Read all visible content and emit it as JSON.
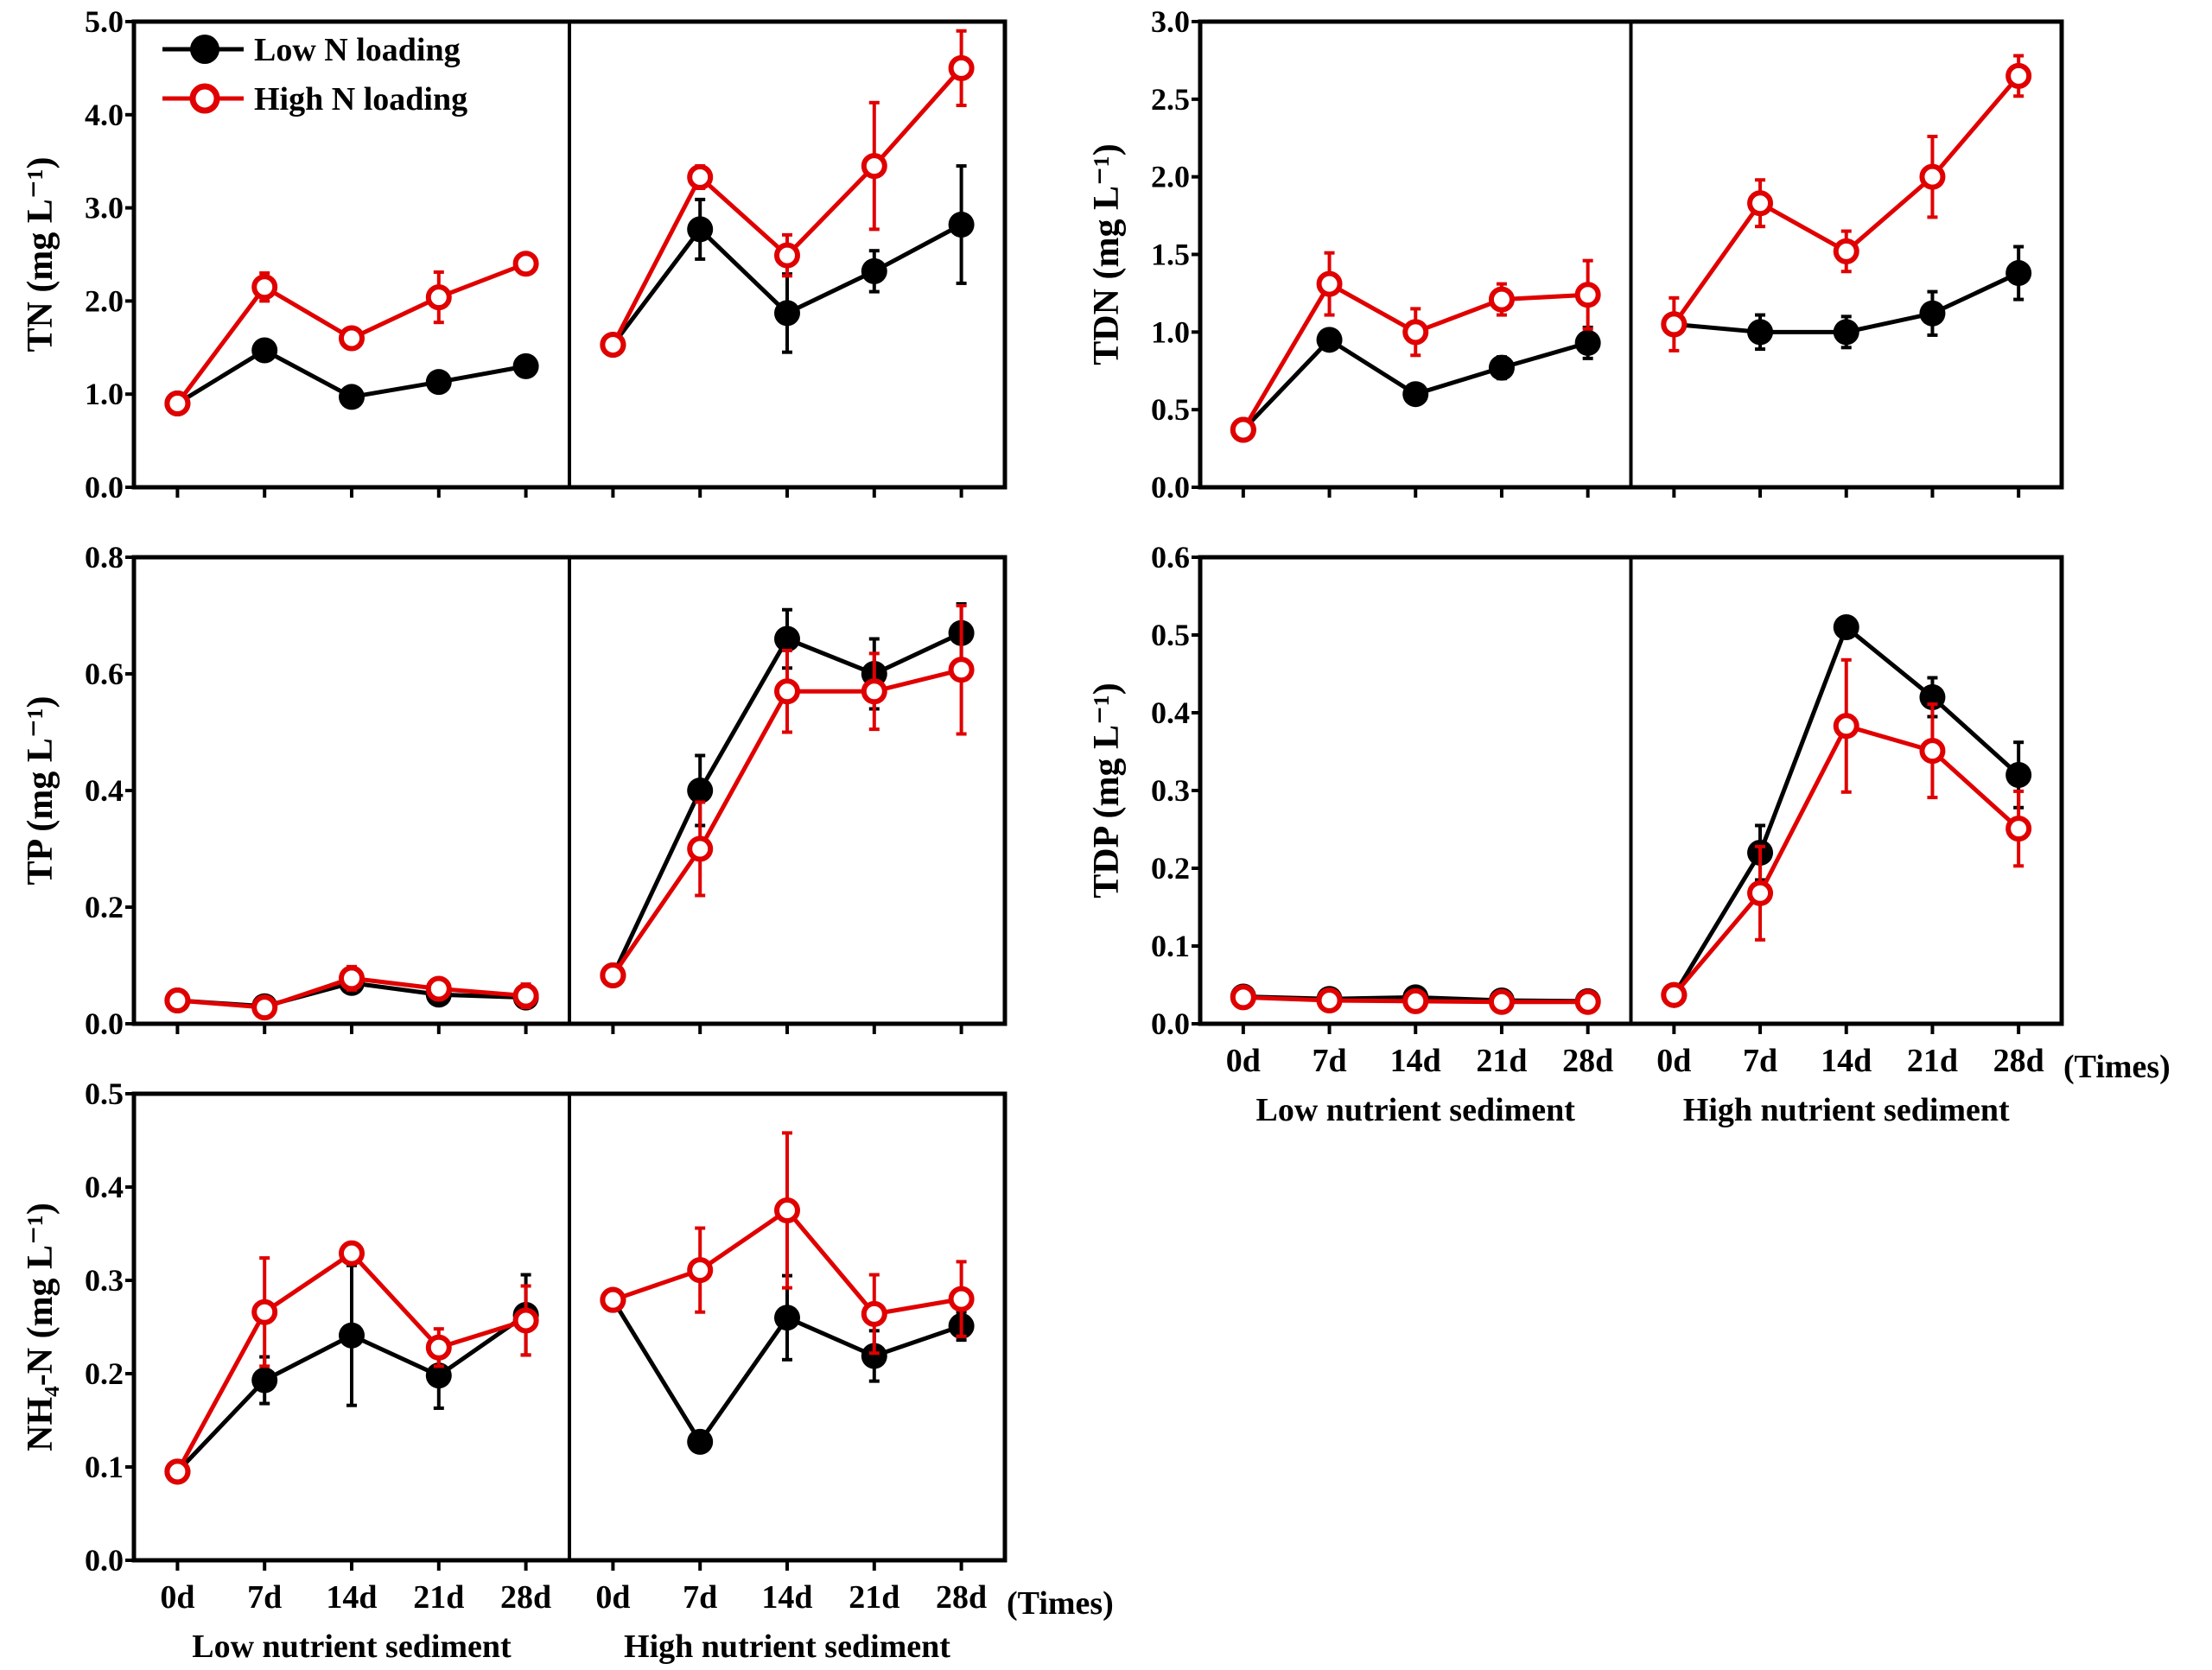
{
  "legend": {
    "low": "Low N loading",
    "high": "High N loading",
    "low_color": "#000000",
    "high_color": "#e00000",
    "placement": "top-left of TN panel"
  },
  "x_categories": [
    "0d",
    "7d",
    "14d",
    "21d",
    "28d"
  ],
  "groups": [
    "Low nutrient sediment",
    "High nutrient sediment"
  ],
  "x_unit": "(Times)",
  "chart_data": [
    {
      "id": "tn",
      "type": "line",
      "ylabel": "TN (mg L⁻¹)",
      "ylim": [
        0,
        5
      ],
      "yticks": [
        "0.0",
        "1.0",
        "2.0",
        "3.0",
        "4.0",
        "5.0"
      ],
      "show_xlabels": false,
      "legend": true,
      "series": [
        {
          "name": "Low N loading",
          "low_sediment": [
            0.9,
            1.47,
            0.97,
            1.13,
            1.3
          ],
          "low_sediment_err": [
            0.02,
            0.03,
            0.03,
            0.04,
            0.1
          ],
          "high_sediment": [
            1.53,
            2.77,
            1.87,
            2.32,
            2.82
          ],
          "high_sediment_err": [
            0.02,
            0.32,
            0.42,
            0.22,
            0.63
          ]
        },
        {
          "name": "High N loading",
          "low_sediment": [
            0.9,
            2.15,
            1.6,
            2.04,
            2.4
          ],
          "low_sediment_err": [
            0.03,
            0.15,
            0.05,
            0.27,
            0.03
          ],
          "high_sediment": [
            1.53,
            3.33,
            2.49,
            3.45,
            4.5
          ],
          "high_sediment_err": [
            0.03,
            0.12,
            0.22,
            0.68,
            0.4
          ]
        }
      ]
    },
    {
      "id": "tdn",
      "type": "line",
      "ylabel": "TDN (mg L⁻¹)",
      "ylim": [
        0,
        3
      ],
      "yticks": [
        "0.0",
        "0.5",
        "1.0",
        "1.5",
        "2.0",
        "2.5",
        "3.0"
      ],
      "show_xlabels": false,
      "legend": false,
      "series": [
        {
          "name": "Low N loading",
          "low_sediment": [
            0.37,
            0.95,
            0.6,
            0.77,
            0.93
          ],
          "low_sediment_err": [
            0.02,
            0.03,
            0.03,
            0.07,
            0.1
          ],
          "high_sediment": [
            1.05,
            1.0,
            1.0,
            1.12,
            1.38
          ],
          "high_sediment_err": [
            0.03,
            0.11,
            0.1,
            0.14,
            0.17
          ]
        },
        {
          "name": "High N loading",
          "low_sediment": [
            0.37,
            1.31,
            1.0,
            1.21,
            1.24
          ],
          "low_sediment_err": [
            0.03,
            0.2,
            0.15,
            0.1,
            0.22
          ],
          "high_sediment": [
            1.05,
            1.83,
            1.52,
            2.0,
            2.65
          ],
          "high_sediment_err": [
            0.17,
            0.15,
            0.13,
            0.26,
            0.13
          ]
        }
      ]
    },
    {
      "id": "tp",
      "type": "line",
      "ylabel": "TP (mg L⁻¹)",
      "ylim": [
        0,
        0.8
      ],
      "yticks": [
        "0.0",
        "0.2",
        "0.4",
        "0.6",
        "0.8"
      ],
      "show_xlabels": false,
      "legend": false,
      "series": [
        {
          "name": "Low N loading",
          "low_sediment": [
            0.04,
            0.03,
            0.07,
            0.05,
            0.045
          ],
          "low_sediment_err": [
            0.005,
            0.005,
            0.01,
            0.01,
            0.01
          ],
          "high_sediment": [
            0.083,
            0.4,
            0.66,
            0.6,
            0.67
          ],
          "high_sediment_err": [
            0.005,
            0.06,
            0.05,
            0.06,
            0.05
          ]
        },
        {
          "name": "High N loading",
          "low_sediment": [
            0.04,
            0.028,
            0.078,
            0.06,
            0.048
          ],
          "low_sediment_err": [
            0.005,
            0.005,
            0.02,
            0.01,
            0.02
          ],
          "high_sediment": [
            0.083,
            0.3,
            0.57,
            0.57,
            0.607
          ],
          "high_sediment_err": [
            0.005,
            0.08,
            0.07,
            0.065,
            0.11
          ]
        }
      ]
    },
    {
      "id": "tdp",
      "type": "line",
      "ylabel": "TDP (mg L⁻¹)",
      "ylim": [
        0,
        0.6
      ],
      "yticks": [
        "0.0",
        "0.1",
        "0.2",
        "0.3",
        "0.4",
        "0.5",
        "0.6"
      ],
      "show_xlabels": true,
      "legend": false,
      "series": [
        {
          "name": "Low N loading",
          "low_sediment": [
            0.035,
            0.032,
            0.034,
            0.03,
            0.029
          ],
          "low_sediment_err": [
            0.003,
            0.003,
            0.003,
            0.003,
            0.003
          ],
          "high_sediment": [
            0.037,
            0.22,
            0.51,
            0.42,
            0.32
          ],
          "high_sediment_err": [
            0.003,
            0.035,
            0.005,
            0.025,
            0.042
          ]
        },
        {
          "name": "High N loading",
          "low_sediment": [
            0.034,
            0.03,
            0.029,
            0.028,
            0.028
          ],
          "low_sediment_err": [
            0.003,
            0.003,
            0.003,
            0.003,
            0.003
          ],
          "high_sediment": [
            0.037,
            0.168,
            0.383,
            0.351,
            0.251
          ],
          "high_sediment_err": [
            0.005,
            0.06,
            0.085,
            0.06,
            0.048
          ]
        }
      ]
    },
    {
      "id": "nh4",
      "type": "line",
      "ylabel": "NH₄-N (mg L⁻¹)",
      "ylim": [
        0,
        0.5
      ],
      "yticks": [
        "0.0",
        "0.1",
        "0.2",
        "0.3",
        "0.4",
        "0.5"
      ],
      "show_xlabels": true,
      "legend": false,
      "series": [
        {
          "name": "Low N loading",
          "low_sediment": [
            0.095,
            0.193,
            0.241,
            0.198,
            0.263
          ],
          "low_sediment_err": [
            0.005,
            0.025,
            0.075,
            0.035,
            0.043
          ],
          "high_sediment": [
            0.279,
            0.127,
            0.26,
            0.219,
            0.251
          ],
          "high_sediment_err": [
            0.005,
            0.005,
            0.045,
            0.027,
            0.015
          ]
        },
        {
          "name": "High N loading",
          "low_sediment": [
            0.095,
            0.266,
            0.329,
            0.228,
            0.257
          ],
          "low_sediment_err": [
            0.01,
            0.058,
            0.005,
            0.02,
            0.037
          ],
          "high_sediment": [
            0.279,
            0.311,
            0.375,
            0.264,
            0.28
          ],
          "high_sediment_err": [
            0.005,
            0.045,
            0.083,
            0.042,
            0.04
          ]
        }
      ]
    }
  ]
}
